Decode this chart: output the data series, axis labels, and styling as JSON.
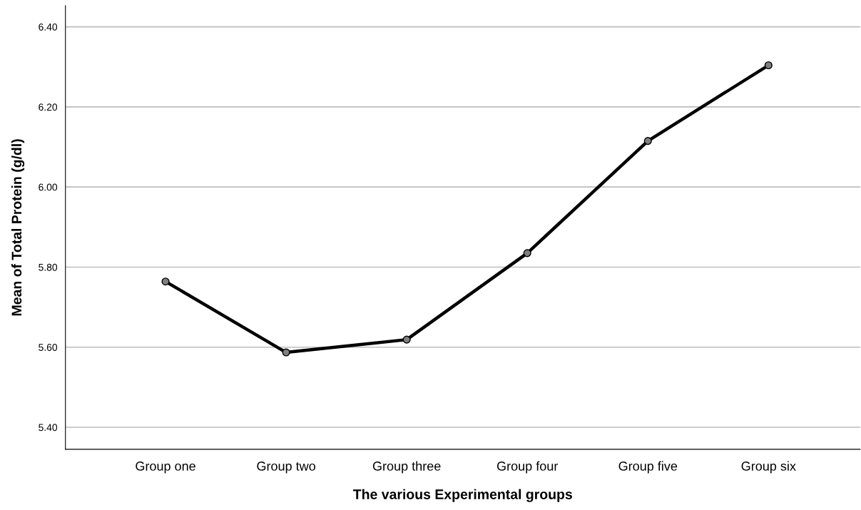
{
  "chart_data": {
    "type": "line",
    "xlabel": "The various Experimental groups",
    "ylabel": "Mean of Total Protein (g/dl)",
    "categories": [
      "Group one",
      "Group two",
      "Group three",
      "Group four",
      "Group five",
      "Group six"
    ],
    "series": [
      {
        "color": "#000000",
        "values": [
          5.764,
          5.587,
          5.619,
          5.835,
          6.115,
          6.304
        ]
      }
    ],
    "ylim": [
      5.345,
      6.453
    ],
    "yticks": [
      {
        "value": 5.4,
        "label": "5.40"
      },
      {
        "value": 5.6,
        "label": "5.60"
      },
      {
        "value": 5.8,
        "label": "5.80"
      },
      {
        "value": 6.0,
        "label": "6.00"
      },
      {
        "value": 6.2,
        "label": "6.20"
      },
      {
        "value": 6.4,
        "label": "6.40"
      }
    ],
    "grid": "y",
    "marker": "circle",
    "line_style": "solid"
  }
}
